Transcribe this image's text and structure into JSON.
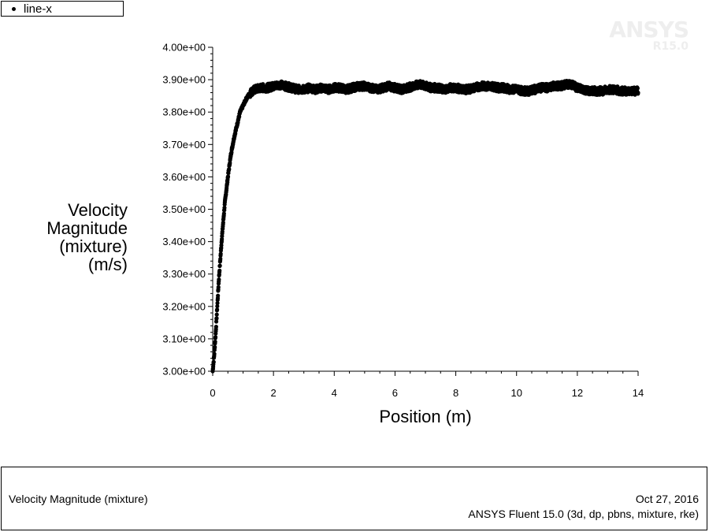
{
  "legend": {
    "entries": [
      "line-x"
    ]
  },
  "watermark": {
    "brand": "ANSYS",
    "version": "R15.0"
  },
  "chart_data": {
    "type": "scatter",
    "title": "",
    "xlabel": "Position (m)",
    "ylabel": [
      "Velocity",
      "Magnitude",
      "(mixture)",
      "(m/s)"
    ],
    "xlim": [
      0,
      14
    ],
    "ylim": [
      3.0,
      4.0
    ],
    "x_ticks": [
      0,
      2,
      4,
      6,
      8,
      10,
      12,
      14
    ],
    "x_tick_labels": [
      "0",
      "2",
      "4",
      "6",
      "8",
      "10",
      "12",
      "14"
    ],
    "y_ticks": [
      3.0,
      3.1,
      3.2,
      3.3,
      3.4,
      3.5,
      3.6,
      3.7,
      3.8,
      3.9,
      4.0
    ],
    "y_tick_labels": [
      "3.00e+00",
      "3.10e+00",
      "3.20e+00",
      "3.30e+00",
      "3.40e+00",
      "3.50e+00",
      "3.60e+00",
      "3.70e+00",
      "3.80e+00",
      "3.90e+00",
      "4.00e+00"
    ],
    "grid": false,
    "legend_position": "top-left",
    "series": [
      {
        "name": "line-x",
        "marker": "dot",
        "color": "#000000",
        "x": [
          0.0,
          0.05,
          0.1,
          0.15,
          0.2,
          0.3,
          0.4,
          0.5,
          0.6,
          0.7,
          0.8,
          0.9,
          1.0,
          1.1,
          1.2,
          1.3,
          1.4,
          1.6,
          1.8,
          2.0,
          2.2,
          2.4,
          2.6,
          2.8,
          3.0,
          3.2,
          3.4,
          3.6,
          3.8,
          4.0,
          4.2,
          4.4,
          4.6,
          4.8,
          5.0,
          5.2,
          5.4,
          5.6,
          5.8,
          6.0,
          6.2,
          6.4,
          6.6,
          6.8,
          7.0,
          7.2,
          7.4,
          7.6,
          7.8,
          8.0,
          8.2,
          8.4,
          8.6,
          8.8,
          9.0,
          9.2,
          9.4,
          9.6,
          9.8,
          10.0,
          10.2,
          10.4,
          10.6,
          10.8,
          11.0,
          11.2,
          11.4,
          11.6,
          11.8,
          12.0,
          12.2,
          12.4,
          12.6,
          12.8,
          13.0,
          13.2,
          13.4,
          13.6,
          13.8,
          14.0
        ],
        "y": [
          3.0,
          3.05,
          3.12,
          3.2,
          3.28,
          3.41,
          3.52,
          3.6,
          3.67,
          3.72,
          3.76,
          3.8,
          3.82,
          3.84,
          3.855,
          3.865,
          3.87,
          3.875,
          3.875,
          3.88,
          3.885,
          3.88,
          3.875,
          3.87,
          3.87,
          3.875,
          3.87,
          3.875,
          3.87,
          3.875,
          3.875,
          3.87,
          3.875,
          3.88,
          3.88,
          3.875,
          3.87,
          3.875,
          3.88,
          3.875,
          3.87,
          3.875,
          3.88,
          3.885,
          3.88,
          3.875,
          3.875,
          3.87,
          3.875,
          3.875,
          3.87,
          3.87,
          3.875,
          3.88,
          3.88,
          3.88,
          3.875,
          3.875,
          3.87,
          3.87,
          3.865,
          3.865,
          3.87,
          3.875,
          3.875,
          3.88,
          3.88,
          3.885,
          3.885,
          3.875,
          3.87,
          3.865,
          3.865,
          3.865,
          3.87,
          3.87,
          3.865,
          3.865,
          3.865,
          3.865
        ],
        "scatter_band": 0.012
      }
    ]
  },
  "footer": {
    "left_text": "Velocity Magnitude (mixture)",
    "date": "Oct 27, 2016",
    "solver": "ANSYS Fluent 15.0 (3d, dp, pbns, mixture, rke)"
  }
}
